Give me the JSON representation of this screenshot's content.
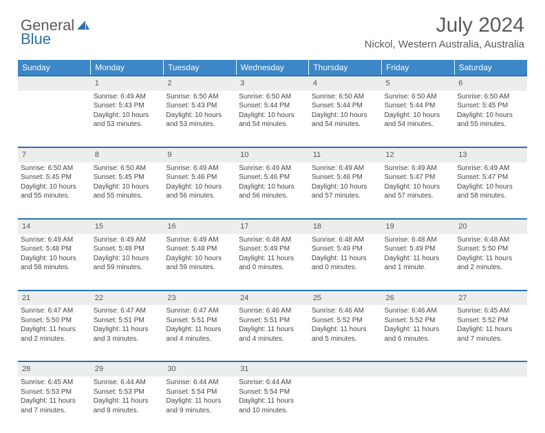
{
  "logo": {
    "text1": "General",
    "text2": "Blue"
  },
  "title": "July 2024",
  "location": "Nickol, Western Australia, Australia",
  "colors": {
    "header_bg": "#3b87c8",
    "header_text": "#ffffff",
    "row_accent": "#2a70b8",
    "daynum_bg": "#eceded",
    "text": "#444444",
    "title_text": "#5a5a5a"
  },
  "day_headers": [
    "Sunday",
    "Monday",
    "Tuesday",
    "Wednesday",
    "Thursday",
    "Friday",
    "Saturday"
  ],
  "weeks": [
    {
      "nums": [
        "",
        "1",
        "2",
        "3",
        "4",
        "5",
        "6"
      ],
      "cells": [
        null,
        {
          "sr": "Sunrise: 6:49 AM",
          "ss": "Sunset: 5:43 PM",
          "dl": "Daylight: 10 hours and 53 minutes."
        },
        {
          "sr": "Sunrise: 6:50 AM",
          "ss": "Sunset: 5:43 PM",
          "dl": "Daylight: 10 hours and 53 minutes."
        },
        {
          "sr": "Sunrise: 6:50 AM",
          "ss": "Sunset: 5:44 PM",
          "dl": "Daylight: 10 hours and 54 minutes."
        },
        {
          "sr": "Sunrise: 6:50 AM",
          "ss": "Sunset: 5:44 PM",
          "dl": "Daylight: 10 hours and 54 minutes."
        },
        {
          "sr": "Sunrise: 6:50 AM",
          "ss": "Sunset: 5:44 PM",
          "dl": "Daylight: 10 hours and 54 minutes."
        },
        {
          "sr": "Sunrise: 6:50 AM",
          "ss": "Sunset: 5:45 PM",
          "dl": "Daylight: 10 hours and 55 minutes."
        }
      ]
    },
    {
      "nums": [
        "7",
        "8",
        "9",
        "10",
        "11",
        "12",
        "13"
      ],
      "cells": [
        {
          "sr": "Sunrise: 6:50 AM",
          "ss": "Sunset: 5:45 PM",
          "dl": "Daylight: 10 hours and 55 minutes."
        },
        {
          "sr": "Sunrise: 6:50 AM",
          "ss": "Sunset: 5:45 PM",
          "dl": "Daylight: 10 hours and 55 minutes."
        },
        {
          "sr": "Sunrise: 6:49 AM",
          "ss": "Sunset: 5:46 PM",
          "dl": "Daylight: 10 hours and 56 minutes."
        },
        {
          "sr": "Sunrise: 6:49 AM",
          "ss": "Sunset: 5:46 PM",
          "dl": "Daylight: 10 hours and 56 minutes."
        },
        {
          "sr": "Sunrise: 6:49 AM",
          "ss": "Sunset: 5:46 PM",
          "dl": "Daylight: 10 hours and 57 minutes."
        },
        {
          "sr": "Sunrise: 6:49 AM",
          "ss": "Sunset: 5:47 PM",
          "dl": "Daylight: 10 hours and 57 minutes."
        },
        {
          "sr": "Sunrise: 6:49 AM",
          "ss": "Sunset: 5:47 PM",
          "dl": "Daylight: 10 hours and 58 minutes."
        }
      ]
    },
    {
      "nums": [
        "14",
        "15",
        "16",
        "17",
        "18",
        "19",
        "20"
      ],
      "cells": [
        {
          "sr": "Sunrise: 6:49 AM",
          "ss": "Sunset: 5:48 PM",
          "dl": "Daylight: 10 hours and 58 minutes."
        },
        {
          "sr": "Sunrise: 6:49 AM",
          "ss": "Sunset: 5:48 PM",
          "dl": "Daylight: 10 hours and 59 minutes."
        },
        {
          "sr": "Sunrise: 6:49 AM",
          "ss": "Sunset: 5:48 PM",
          "dl": "Daylight: 10 hours and 59 minutes."
        },
        {
          "sr": "Sunrise: 6:48 AM",
          "ss": "Sunset: 5:49 PM",
          "dl": "Daylight: 11 hours and 0 minutes."
        },
        {
          "sr": "Sunrise: 6:48 AM",
          "ss": "Sunset: 5:49 PM",
          "dl": "Daylight: 11 hours and 0 minutes."
        },
        {
          "sr": "Sunrise: 6:48 AM",
          "ss": "Sunset: 5:49 PM",
          "dl": "Daylight: 11 hours and 1 minute."
        },
        {
          "sr": "Sunrise: 6:48 AM",
          "ss": "Sunset: 5:50 PM",
          "dl": "Daylight: 11 hours and 2 minutes."
        }
      ]
    },
    {
      "nums": [
        "21",
        "22",
        "23",
        "24",
        "25",
        "26",
        "27"
      ],
      "cells": [
        {
          "sr": "Sunrise: 6:47 AM",
          "ss": "Sunset: 5:50 PM",
          "dl": "Daylight: 11 hours and 2 minutes."
        },
        {
          "sr": "Sunrise: 6:47 AM",
          "ss": "Sunset: 5:51 PM",
          "dl": "Daylight: 11 hours and 3 minutes."
        },
        {
          "sr": "Sunrise: 6:47 AM",
          "ss": "Sunset: 5:51 PM",
          "dl": "Daylight: 11 hours and 4 minutes."
        },
        {
          "sr": "Sunrise: 6:46 AM",
          "ss": "Sunset: 5:51 PM",
          "dl": "Daylight: 11 hours and 4 minutes."
        },
        {
          "sr": "Sunrise: 6:46 AM",
          "ss": "Sunset: 5:52 PM",
          "dl": "Daylight: 11 hours and 5 minutes."
        },
        {
          "sr": "Sunrise: 6:46 AM",
          "ss": "Sunset: 5:52 PM",
          "dl": "Daylight: 11 hours and 6 minutes."
        },
        {
          "sr": "Sunrise: 6:45 AM",
          "ss": "Sunset: 5:52 PM",
          "dl": "Daylight: 11 hours and 7 minutes."
        }
      ]
    },
    {
      "nums": [
        "28",
        "29",
        "30",
        "31",
        "",
        "",
        ""
      ],
      "cells": [
        {
          "sr": "Sunrise: 6:45 AM",
          "ss": "Sunset: 5:53 PM",
          "dl": "Daylight: 11 hours and 7 minutes."
        },
        {
          "sr": "Sunrise: 6:44 AM",
          "ss": "Sunset: 5:53 PM",
          "dl": "Daylight: 11 hours and 8 minutes."
        },
        {
          "sr": "Sunrise: 6:44 AM",
          "ss": "Sunset: 5:54 PM",
          "dl": "Daylight: 11 hours and 9 minutes."
        },
        {
          "sr": "Sunrise: 6:44 AM",
          "ss": "Sunset: 5:54 PM",
          "dl": "Daylight: 11 hours and 10 minutes."
        },
        null,
        null,
        null
      ]
    }
  ]
}
